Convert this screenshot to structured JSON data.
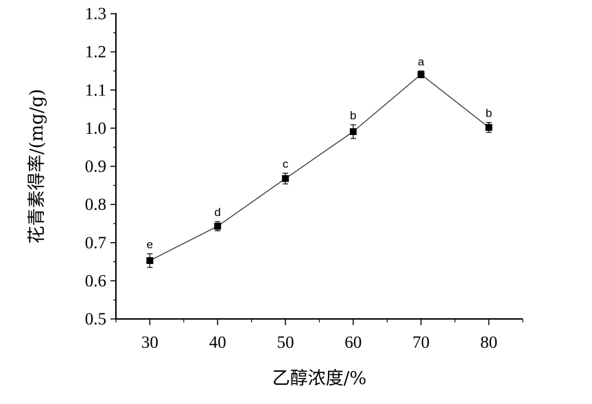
{
  "chart_data": {
    "type": "line",
    "title": "",
    "xlabel": "乙醇浓度/%",
    "ylabel": "花青素得率/(mg/g)",
    "x": [
      30,
      40,
      50,
      60,
      70,
      80
    ],
    "xlim": [
      25,
      85
    ],
    "ylim": [
      0.5,
      1.3
    ],
    "x_ticks": [
      "30",
      "40",
      "50",
      "60",
      "70",
      "80"
    ],
    "y_ticks": [
      "0.5",
      "0.6",
      "0.7",
      "0.8",
      "0.9",
      "1.0",
      "1.1",
      "1.2",
      "1.3"
    ],
    "y_tick_values": [
      0.5,
      0.6,
      0.7,
      0.8,
      0.9,
      1.0,
      1.1,
      1.2,
      1.3
    ],
    "grid": false,
    "series": [
      {
        "values": [
          0.653,
          0.743,
          0.868,
          0.991,
          1.141,
          1.002
        ],
        "errors": [
          0.018,
          0.012,
          0.014,
          0.018,
          0.009,
          0.013
        ],
        "significance_labels": [
          "e",
          "d",
          "c",
          "b",
          "a",
          "b"
        ],
        "marker": "square",
        "color": "#000000"
      }
    ]
  }
}
